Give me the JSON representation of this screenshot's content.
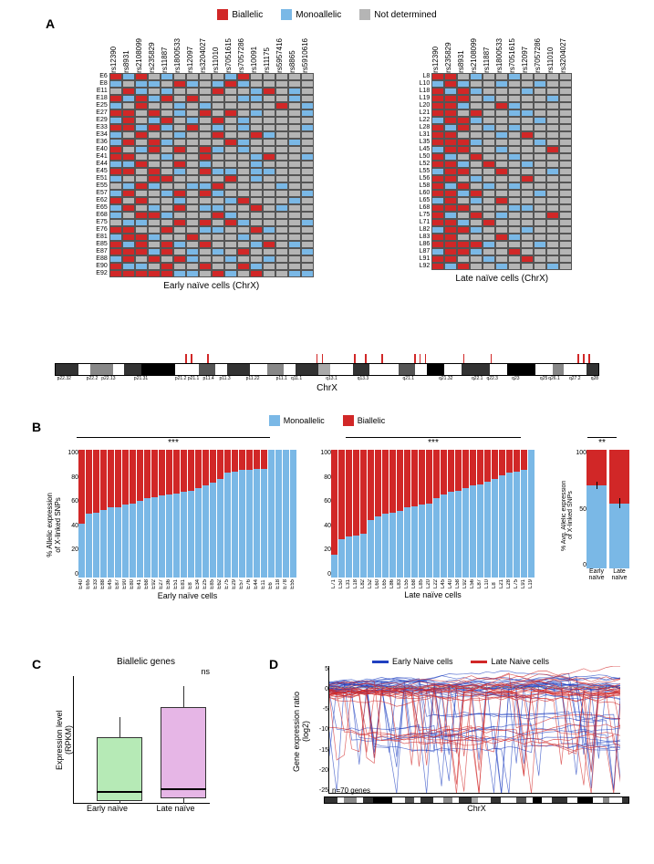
{
  "colors": {
    "biallelic": "#d12727",
    "monoallelic": "#7ab8e6",
    "not_determined": "#b5b5b5",
    "white": "#ffffff",
    "black": "#000000",
    "early_box": "#b6eab6",
    "late_box": "#e6b6e6",
    "early_line": "#2040c0",
    "late_line": "#d12727"
  },
  "fonts": {
    "label": 14,
    "axis": 10,
    "tiny": 7
  },
  "panelA": {
    "legend": [
      {
        "label": "Biallelic",
        "colorKey": "biallelic"
      },
      {
        "label": "Monoallelic",
        "colorKey": "monoallelic"
      },
      {
        "label": "Not determined",
        "colorKey": "not_determined"
      }
    ],
    "early": {
      "title": "Early naïve cells (ChrX)",
      "cols": [
        "rs12390",
        "rs8931",
        "rs2108099",
        "rs235829",
        "rs11887",
        "rs1800533",
        "rs12097",
        "rs3204027",
        "rs11010",
        "rs7051615",
        "rs7057286",
        "rs10091",
        "rs11175",
        "rs5957416",
        "rs8865",
        "rs5910616"
      ],
      "rows": [
        "E6",
        "E8",
        "E11",
        "E18",
        "E25",
        "E27",
        "E29",
        "E33",
        "E34",
        "E36",
        "E40",
        "E41",
        "E44",
        "E45",
        "E51",
        "E55",
        "E57",
        "E62",
        "E65",
        "E68",
        "E75",
        "E76",
        "E81",
        "E85",
        "E87",
        "E88",
        "E90",
        "E92"
      ],
      "data": [
        "BMBNMNNNNMBNNNNN",
        "MNMMNBMNMBMNNNNN",
        "NBMNMNNNBNNMBNMN",
        "BMBMBNBNNNMMNNMN",
        "MNBNNMNMNNNNNBNM",
        "BBNBNMNBNBNMNNNM",
        "MBNMBNMNBNMNNNNN",
        "BBMBMNBNMNMNNNNM",
        "MNBNNMNNBNNBMNNN",
        "MBNBMNNNNBMNNNMN",
        "BNMBNBNBMNMNNNNN",
        "BBNNMNNBNNNMBNNM",
        "MMBNNBNMNNNMNNNN",
        "BBNBNMNBMMNMMNNN",
        "MNNBBNNNNBNMNNNN",
        "NMBMNNMMBNNNNMNN",
        "MBNNMBNBMNNNNNNM",
        "BNBNNMNNNMBNNNMN",
        "MBNMNBNMMNNBNMNN",
        "MNBBMNNNBMNNNNNN",
        "NMMNNBNBNBMNNNNM",
        "BBNNBNNMMNNBMNNN",
        "MBBMNNBNNNMNNNNN",
        "BMBNBMNBNNNMBNMN",
        "BBBMBNMNMNBNNNNM",
        "MBNBNBMNNMNNMNNN",
        "BMMNBNNBNNBMNNNN",
        "BBBBBMMNBMNBNNMM"
      ]
    },
    "late": {
      "title": "Late naïve cells (ChrX)",
      "cols": [
        "rs12390",
        "rs235829",
        "rs8931",
        "rs2108099",
        "rs11887",
        "rs1800533",
        "rs7051615",
        "rs12097",
        "rs7057286",
        "rs11010",
        "rs3204027"
      ],
      "rows": [
        "L8",
        "L10",
        "L18",
        "L19",
        "L20",
        "L21",
        "L22",
        "L28",
        "L31",
        "L35",
        "L45",
        "L50",
        "L52",
        "L55",
        "L56",
        "L58",
        "L60",
        "L65",
        "L68",
        "L75",
        "L71",
        "L82",
        "L83",
        "L86",
        "L87",
        "L91",
        "L92"
      ],
      "data": [
        "BBNMNNMNNNN",
        "MBMNNMNNMNN",
        "BMBMNNNMNNN",
        "BBBNMNNNNMN",
        "BBMNNBMNNNN",
        "BBNBNNMMNNN",
        "MBBMNNNNMNN",
        "BMBNMNMNNNN",
        "BBNNNMNBNNN",
        "BBBMNNNNMNN",
        "MBBNNMNNNBN",
        "BMNBNNMNNNN",
        "BBMNBNNMNNN",
        "MBBNNBNNNMN",
        "BBNMNNNBNNN",
        "BMBNMNMNNNN",
        "BBMBNNNNMNN",
        "MBNMNBNNNNN",
        "BBBNNNMMNNN",
        "BMNBNMNNNBN",
        "BBMNBNNNNNN",
        "MBBMNNNMNNN",
        "BBNNNBMNNNN",
        "BBBBMNNNMNN",
        "MBBMNNBNNNN",
        "BBNNMNNBNNN",
        "BMBNNMNNNMN"
      ]
    },
    "ideogram": {
      "title": "ChrX",
      "bands": [
        {
          "w": 4,
          "c": "#333"
        },
        {
          "w": 2,
          "c": "#fff"
        },
        {
          "w": 4,
          "c": "#888"
        },
        {
          "w": 2,
          "c": "#fff"
        },
        {
          "w": 3,
          "c": "#333"
        },
        {
          "w": 6,
          "c": "#000"
        },
        {
          "w": 4,
          "c": "#fff"
        },
        {
          "w": 3,
          "c": "#555"
        },
        {
          "w": 2,
          "c": "#fff"
        },
        {
          "w": 4,
          "c": "#333"
        },
        {
          "w": 3,
          "c": "#fff"
        },
        {
          "w": 3,
          "c": "#888"
        },
        {
          "w": 2,
          "c": "#fff"
        },
        {
          "w": 4,
          "c": "#333"
        },
        {
          "w": 2,
          "c": "#aaa"
        },
        {
          "w": 4,
          "c": "#fff"
        },
        {
          "w": 3,
          "c": "#333"
        },
        {
          "w": 5,
          "c": "#fff"
        },
        {
          "w": 3,
          "c": "#555"
        },
        {
          "w": 2,
          "c": "#fff"
        },
        {
          "w": 3,
          "c": "#000"
        },
        {
          "w": 3,
          "c": "#fff"
        },
        {
          "w": 5,
          "c": "#333"
        },
        {
          "w": 3,
          "c": "#fff"
        },
        {
          "w": 5,
          "c": "#000"
        },
        {
          "w": 3,
          "c": "#fff"
        },
        {
          "w": 2,
          "c": "#888"
        },
        {
          "w": 4,
          "c": "#fff"
        },
        {
          "w": 2,
          "c": "#333"
        }
      ],
      "labels": [
        "p22.32",
        "",
        "p22.2",
        "p22.13",
        "",
        "p21.31",
        "",
        "p21.2",
        "p21.1",
        "p11.4",
        "p11.3",
        "",
        "p11.22",
        "",
        "p11.1",
        "q11.1",
        "",
        "q13.1",
        "",
        "q13.3",
        "",
        "",
        "q21.1",
        "",
        "q21.32",
        "",
        "q22.1",
        "q22.3",
        "",
        "q23",
        "",
        "",
        "q25",
        "q26.1",
        "",
        "q27.2",
        "",
        "q28"
      ],
      "marks": [
        24,
        25,
        28,
        48,
        49,
        55,
        57,
        60,
        66,
        67,
        68,
        75,
        80,
        96,
        97,
        98
      ]
    }
  },
  "panelB": {
    "legend": [
      {
        "label": "Monoallelic",
        "colorKey": "monoallelic"
      },
      {
        "label": "Biallelic",
        "colorKey": "biallelic"
      }
    ],
    "ylabel": "% Allelic expression\nof X-linked SNPs",
    "ylabel_avg": "% Avg. Allelic expression\nof X-linked SNPs",
    "ymax": 100,
    "sig": "***",
    "sig_avg": "**",
    "early": {
      "title": "Early naïve cells",
      "items": [
        {
          "id": "E40",
          "mono": 42
        },
        {
          "id": "E65",
          "mono": 50
        },
        {
          "id": "E33",
          "mono": 51
        },
        {
          "id": "E88",
          "mono": 53
        },
        {
          "id": "E45",
          "mono": 55
        },
        {
          "id": "E87",
          "mono": 55
        },
        {
          "id": "E90",
          "mono": 57
        },
        {
          "id": "E80",
          "mono": 58
        },
        {
          "id": "E41",
          "mono": 60
        },
        {
          "id": "E68",
          "mono": 62
        },
        {
          "id": "E92",
          "mono": 63
        },
        {
          "id": "E27",
          "mono": 64
        },
        {
          "id": "E36",
          "mono": 65
        },
        {
          "id": "E51",
          "mono": 66
        },
        {
          "id": "E81",
          "mono": 67
        },
        {
          "id": "E8",
          "mono": 68
        },
        {
          "id": "E34",
          "mono": 70
        },
        {
          "id": "E25",
          "mono": 72
        },
        {
          "id": "E85",
          "mono": 74
        },
        {
          "id": "E62",
          "mono": 77
        },
        {
          "id": "E75",
          "mono": 82
        },
        {
          "id": "E29",
          "mono": 83
        },
        {
          "id": "E57",
          "mono": 84
        },
        {
          "id": "E76",
          "mono": 84
        },
        {
          "id": "E44",
          "mono": 85
        },
        {
          "id": "E11",
          "mono": 85
        },
        {
          "id": "E6",
          "mono": 100
        },
        {
          "id": "E18",
          "mono": 100
        },
        {
          "id": "E78",
          "mono": 100
        },
        {
          "id": "E55",
          "mono": 100
        }
      ]
    },
    "late": {
      "title": "Late naïve cells",
      "items": [
        {
          "id": "L71",
          "mono": 18
        },
        {
          "id": "L50",
          "mono": 30
        },
        {
          "id": "L31",
          "mono": 32
        },
        {
          "id": "L18",
          "mono": 33
        },
        {
          "id": "L82",
          "mono": 34
        },
        {
          "id": "L52",
          "mono": 45
        },
        {
          "id": "L60",
          "mono": 48
        },
        {
          "id": "L65",
          "mono": 50
        },
        {
          "id": "L86",
          "mono": 51
        },
        {
          "id": "L83",
          "mono": 52
        },
        {
          "id": "L55",
          "mono": 55
        },
        {
          "id": "L68",
          "mono": 56
        },
        {
          "id": "L85",
          "mono": 57
        },
        {
          "id": "L20",
          "mono": 58
        },
        {
          "id": "L22",
          "mono": 62
        },
        {
          "id": "L45",
          "mono": 65
        },
        {
          "id": "L40",
          "mono": 67
        },
        {
          "id": "L58",
          "mono": 68
        },
        {
          "id": "L92",
          "mono": 70
        },
        {
          "id": "L56",
          "mono": 72
        },
        {
          "id": "L87",
          "mono": 73
        },
        {
          "id": "L10",
          "mono": 75
        },
        {
          "id": "L8",
          "mono": 77
        },
        {
          "id": "L21",
          "mono": 80
        },
        {
          "id": "L28",
          "mono": 82
        },
        {
          "id": "L75",
          "mono": 83
        },
        {
          "id": "L91",
          "mono": 84
        },
        {
          "id": "L19",
          "mono": 100
        }
      ]
    },
    "avg": {
      "labels": [
        "Early\nnaïve",
        "Late\nnaïve"
      ],
      "mono": [
        70,
        55
      ],
      "err": [
        3,
        4
      ]
    }
  },
  "panelC": {
    "title": "Biallelic genes",
    "ylabel": "Expression level\n(RPKM)",
    "sig": "ns",
    "xlabels": [
      "Early naïve",
      "Late naïve"
    ],
    "boxes": [
      {
        "min": 0,
        "q1": 1,
        "median": 5,
        "q3": 26,
        "max": 34,
        "colorKey": "early_box"
      },
      {
        "min": 0,
        "q1": 2,
        "median": 6,
        "q3": 38,
        "max": 46,
        "colorKey": "late_box"
      }
    ],
    "ymax": 50
  },
  "panelD": {
    "legend": [
      {
        "label": "Early Naive cells",
        "colorKey": "early_line"
      },
      {
        "label": "Late Naive cells",
        "colorKey": "late_line"
      }
    ],
    "ylabel": "Gene expression ratio\n(log2)",
    "ylim": [
      -25,
      5
    ],
    "yticks": [
      5,
      0,
      -5,
      -10,
      -15,
      -20,
      -25
    ],
    "note": "n=70 genes",
    "xlabel": "ChrX",
    "n_lines_early": 30,
    "n_lines_late": 27
  }
}
